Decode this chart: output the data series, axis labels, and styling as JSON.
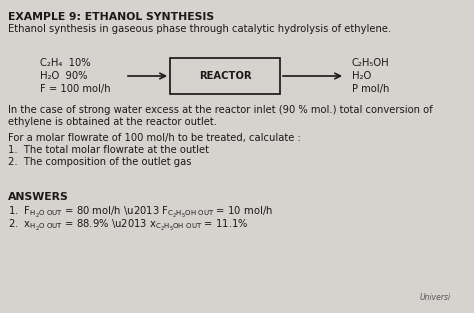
{
  "title": "EXAMPLE 9: ETHANOL SYNTHESIS",
  "subtitle": "Ethanol synthesis in gaseous phase through catalytic hydrolysis of ethylene.",
  "inlet_line1": "C₂H₄  10%",
  "inlet_line2": "H₂O  90%",
  "inlet_line3": "F = 100 mol/h",
  "reactor_label": "REACTOR",
  "outlet_line1": "C₂H₅OH",
  "outlet_line2": "H₂O",
  "outlet_line3": "P mol/h",
  "paragraph1a": "In the case of strong water excess at the reactor inlet (90 % mol.) total conversion of",
  "paragraph1b": "ethylene is obtained at the reactor outlet.",
  "paragraph2": "For a molar flowrate of 100 mol/h to be treated, calculate :",
  "question1": "1.  The total molar flowrate at the outlet",
  "question2": "2.  The composition of the outlet gas",
  "answers_title": "ANSWERS",
  "bg_color": "#d6d3ce",
  "text_color": "#1a1a1a",
  "box_color": "#d6d3ce",
  "box_edge_color": "#222222"
}
